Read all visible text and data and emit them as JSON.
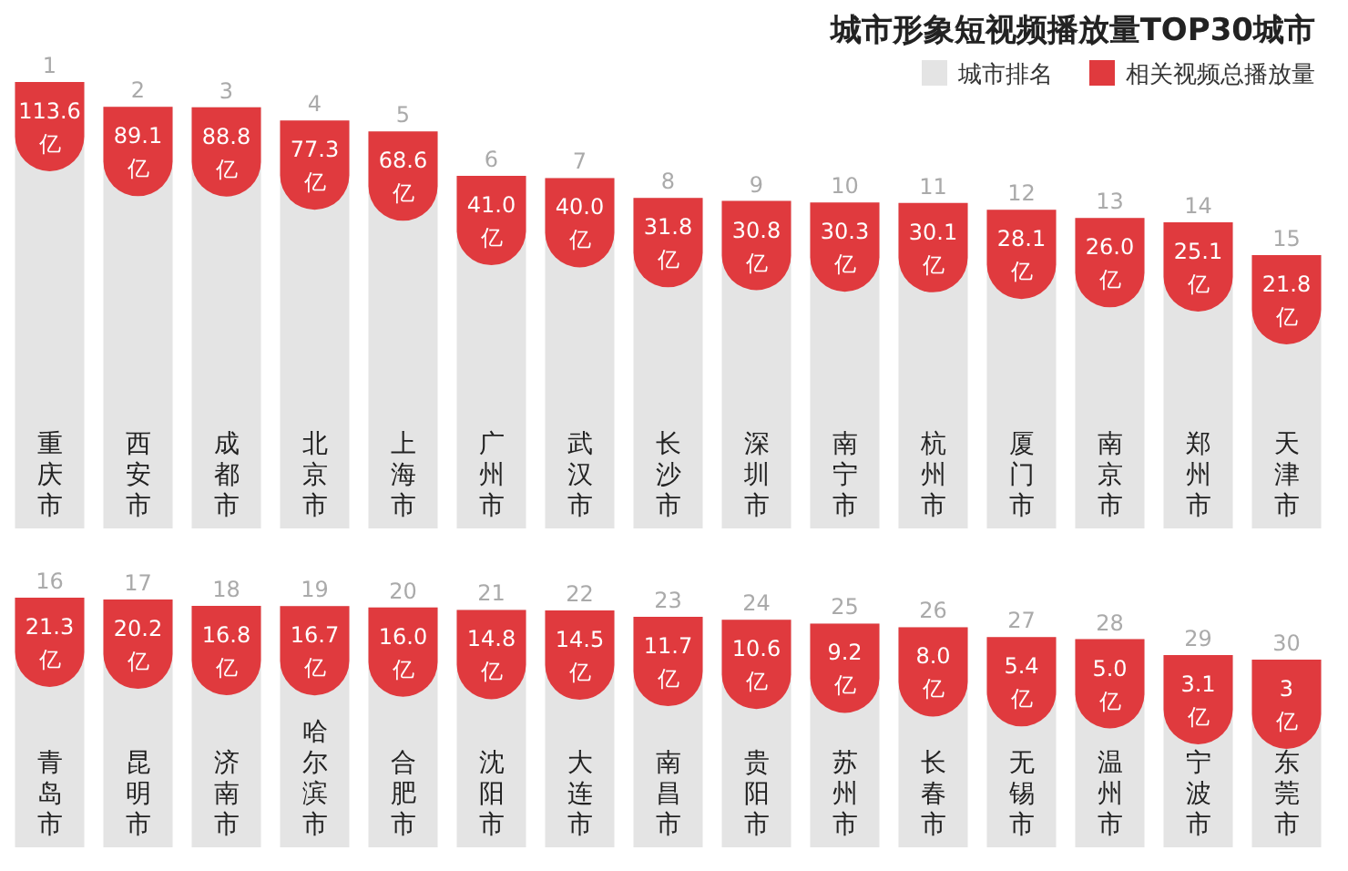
{
  "chart_data": [
    {
      "type": "other",
      "title": "城市形象短视频播放量TOP30城市",
      "legend": "top right",
      "categories": [
        "重庆市",
        "西安市",
        "成都市",
        "北京市",
        "上海市",
        "广州市",
        "武汉市",
        "长沙市",
        "深圳市",
        "南宁市",
        "杭州市",
        "厦门市",
        "南京市",
        "郑州市",
        "天津市"
      ],
      "series": [
        {
          "name": "城市排名",
          "color": "#e4e4e4",
          "values": [
            1,
            2,
            3,
            4,
            5,
            6,
            7,
            8,
            9,
            10,
            11,
            12,
            13,
            14,
            15
          ],
          "value_labels": [
            "1",
            "2",
            "3",
            "4",
            "5",
            "6",
            "7",
            "8",
            "9",
            "10",
            "11",
            "12",
            "13",
            "14",
            "15"
          ]
        },
        {
          "name": "相关视频总播放量",
          "color": "#e03a3e",
          "values": [
            113.6,
            89.1,
            88.8,
            77.3,
            68.6,
            41.0,
            40.0,
            31.8,
            30.8,
            30.3,
            30.1,
            28.1,
            26.0,
            25.1,
            21.8
          ],
          "value_labels": [
            "113.6亿",
            "89.1亿",
            "88.8亿",
            "77.3亿",
            "68.6亿",
            "41.0亿",
            "40.0亿",
            "31.8亿",
            "30.8亿",
            "30.3亿",
            "30.1亿",
            "28.1亿",
            "26.0亿",
            "25.1亿",
            "21.8亿"
          ]
        }
      ]
    },
    {
      "type": "other",
      "categories": [
        "青岛市",
        "昆明市",
        "济南市",
        "哈尔滨市",
        "合肥市",
        "沈阳市",
        "大连市",
        "南昌市",
        "贵阳市",
        "苏州市",
        "长春市",
        "无锡市",
        "温州市",
        "宁波市",
        "东莞市"
      ],
      "series": [
        {
          "color": "#e4e4e4",
          "values": [
            16,
            17,
            18,
            19,
            20,
            21,
            22,
            23,
            24,
            25,
            26,
            27,
            28,
            29,
            30
          ],
          "value_labels": [
            "16",
            "17",
            "18",
            "19",
            "20",
            "21",
            "22",
            "23",
            "24",
            "25",
            "26",
            "27",
            "28",
            "29",
            "30"
          ]
        },
        {
          "color": "#e03a3e",
          "values": [
            21.3,
            20.2,
            16.8,
            16.7,
            16.0,
            14.8,
            14.5,
            11.7,
            10.6,
            9.2,
            8.0,
            5.4,
            5.0,
            3.1,
            3
          ],
          "value_labels": [
            "21.3亿",
            "20.2亿",
            "16.8亿",
            "16.7亿",
            "16.0亿",
            "14.8亿",
            "14.5亿",
            "11.7亿",
            "10.6亿",
            "9.2亿",
            "8.0亿",
            "5.4亿",
            "5.0亿",
            "3.1亿",
            "3亿"
          ]
        }
      ]
    }
  ]
}
